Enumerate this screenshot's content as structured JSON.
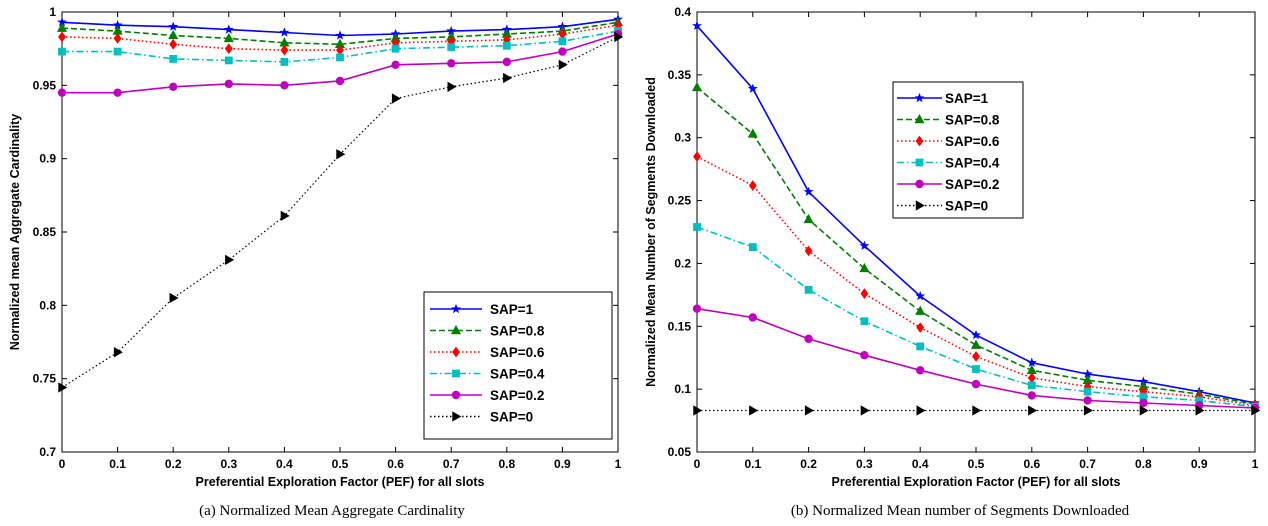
{
  "chart_data": [
    {
      "type": "line",
      "caption": "(a) Normalized Mean Aggregate Cardinality",
      "xlabel": "Preferential Exploration Factor (PEF) for all slots",
      "ylabel": "Normalized mean Aggregate Cardinality",
      "xlim": [
        0,
        1
      ],
      "ylim": [
        0.7,
        1
      ],
      "x": [
        0,
        0.1,
        0.2,
        0.3,
        0.4,
        0.5,
        0.6,
        0.7,
        0.8,
        0.9,
        1
      ],
      "xticks": [
        "0",
        "0.1",
        "0.2",
        "0.3",
        "0.4",
        "0.5",
        "0.6",
        "0.7",
        "0.8",
        "0.9",
        "1"
      ],
      "yticks": [
        "0.7",
        "0.75",
        "0.8",
        "0.85",
        "0.9",
        "0.95",
        "1"
      ],
      "legend_position": "bottom-right",
      "grid": false,
      "series": [
        {
          "name": "SAP=1",
          "color": "#0000ff",
          "dash": "solid",
          "marker": "star",
          "values": [
            0.993,
            0.991,
            0.99,
            0.988,
            0.986,
            0.984,
            0.985,
            0.987,
            0.988,
            0.99,
            0.995
          ]
        },
        {
          "name": "SAP=0.8",
          "color": "#007f00",
          "dash": "dashed",
          "marker": "triangle",
          "values": [
            0.989,
            0.987,
            0.984,
            0.982,
            0.979,
            0.978,
            0.982,
            0.983,
            0.985,
            0.987,
            0.993
          ]
        },
        {
          "name": "SAP=0.6",
          "color": "#ff0000",
          "dash": "dotted",
          "marker": "diamond",
          "values": [
            0.983,
            0.982,
            0.978,
            0.975,
            0.974,
            0.974,
            0.979,
            0.98,
            0.981,
            0.985,
            0.991
          ]
        },
        {
          "name": "SAP=0.4",
          "color": "#00bfbf",
          "dash": "dashdot",
          "marker": "square",
          "values": [
            0.973,
            0.973,
            0.968,
            0.967,
            0.966,
            0.969,
            0.975,
            0.976,
            0.977,
            0.98,
            0.987
          ]
        },
        {
          "name": "SAP=0.2",
          "color": "#bf00bf",
          "dash": "solid",
          "marker": "circle",
          "values": [
            0.945,
            0.945,
            0.949,
            0.951,
            0.95,
            0.953,
            0.964,
            0.965,
            0.966,
            0.973,
            0.985
          ]
        },
        {
          "name": "SAP=0",
          "color": "#000000",
          "dash": "dotted",
          "marker": "triangle-right",
          "values": [
            0.744,
            0.768,
            0.805,
            0.831,
            0.861,
            0.903,
            0.941,
            0.949,
            0.955,
            0.964,
            0.983
          ]
        }
      ]
    },
    {
      "type": "line",
      "caption": "(b) Normalized Mean number of Segments Downloaded",
      "xlabel": "Preferential Exploration Factor (PEF) for all slots",
      "ylabel": "Normalized Mean Number of Segments Downloaded",
      "xlim": [
        0,
        1
      ],
      "ylim": [
        0.05,
        0.4
      ],
      "x": [
        0,
        0.1,
        0.2,
        0.3,
        0.4,
        0.5,
        0.6,
        0.7,
        0.8,
        0.9,
        1
      ],
      "xticks": [
        "0",
        "0.1",
        "0.2",
        "0.3",
        "0.4",
        "0.5",
        "0.6",
        "0.7",
        "0.8",
        "0.9",
        "1"
      ],
      "yticks": [
        "0.05",
        "0.1",
        "0.15",
        "0.2",
        "0.25",
        "0.3",
        "0.35",
        "0.4"
      ],
      "legend_position": "top-left",
      "grid": false,
      "series": [
        {
          "name": "SAP=1",
          "color": "#0000ff",
          "dash": "solid",
          "marker": "star",
          "values": [
            0.389,
            0.339,
            0.257,
            0.214,
            0.174,
            0.143,
            0.121,
            0.112,
            0.106,
            0.098,
            0.089
          ]
        },
        {
          "name": "SAP=0.8",
          "color": "#007f00",
          "dash": "dashed",
          "marker": "triangle",
          "values": [
            0.34,
            0.303,
            0.235,
            0.196,
            0.162,
            0.135,
            0.115,
            0.107,
            0.102,
            0.096,
            0.088
          ]
        },
        {
          "name": "SAP=0.6",
          "color": "#ff0000",
          "dash": "dotted",
          "marker": "diamond",
          "values": [
            0.285,
            0.262,
            0.21,
            0.176,
            0.149,
            0.126,
            0.109,
            0.102,
            0.098,
            0.094,
            0.087
          ]
        },
        {
          "name": "SAP=0.4",
          "color": "#00bfbf",
          "dash": "dashdot",
          "marker": "square",
          "values": [
            0.229,
            0.213,
            0.179,
            0.154,
            0.134,
            0.116,
            0.103,
            0.098,
            0.094,
            0.091,
            0.086
          ]
        },
        {
          "name": "SAP=0.2",
          "color": "#bf00bf",
          "dash": "solid",
          "marker": "circle",
          "values": [
            0.164,
            0.157,
            0.14,
            0.127,
            0.115,
            0.104,
            0.095,
            0.091,
            0.089,
            0.087,
            0.085
          ]
        },
        {
          "name": "SAP=0",
          "color": "#000000",
          "dash": "dotted",
          "marker": "triangle-right",
          "values": [
            0.083,
            0.083,
            0.083,
            0.083,
            0.083,
            0.083,
            0.083,
            0.083,
            0.083,
            0.083,
            0.083
          ]
        }
      ]
    }
  ]
}
